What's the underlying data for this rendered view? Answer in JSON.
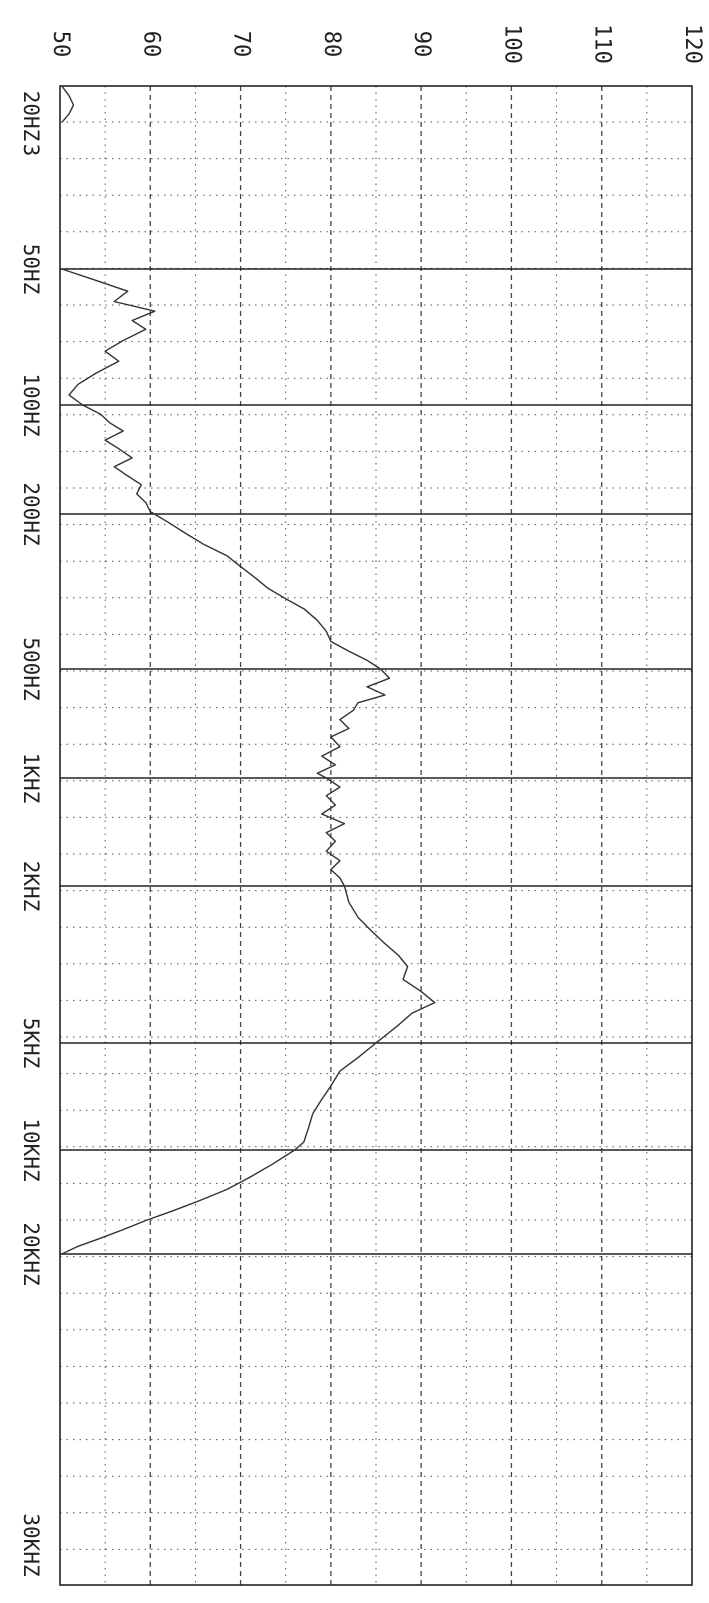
{
  "chart_data": {
    "type": "line",
    "title": "",
    "xlabel": "",
    "ylabel": "",
    "y_scale": "linear",
    "ylim": [
      50,
      120
    ],
    "y_ticks": [
      "50",
      "60",
      "70",
      "80",
      "90",
      "100",
      "110",
      "120"
    ],
    "x_scale": "log",
    "x_ticks": [
      "20HZ",
      "3",
      "50HZ",
      "100HZ",
      "200HZ",
      "500HZ",
      "1KHZ",
      "2KHZ",
      "5KHZ",
      "10KHZ",
      "20KHZ",
      "30KHZ"
    ],
    "grid": true,
    "orientation": "rotated (frequency axis vertical, level axis horizontal)",
    "series": [
      {
        "color": "#333333",
        "points": [
          {
            "x": 20,
            "y": 50.2
          },
          {
            "x": 21,
            "y": 51.0
          },
          {
            "x": 22,
            "y": 51.5
          },
          {
            "x": 23,
            "y": 51.0
          },
          {
            "x": 24,
            "y": 50.2
          },
          {
            "x": 50,
            "y": 50.2
          },
          {
            "x": 53,
            "y": 54.0
          },
          {
            "x": 56,
            "y": 57.5
          },
          {
            "x": 59,
            "y": 56.0
          },
          {
            "x": 62,
            "y": 60.5
          },
          {
            "x": 65,
            "y": 58.0
          },
          {
            "x": 68,
            "y": 59.5
          },
          {
            "x": 72,
            "y": 57.0
          },
          {
            "x": 76,
            "y": 55.0
          },
          {
            "x": 80,
            "y": 56.5
          },
          {
            "x": 85,
            "y": 54.0
          },
          {
            "x": 90,
            "y": 52.0
          },
          {
            "x": 95,
            "y": 51.0
          },
          {
            "x": 100,
            "y": 52.5
          },
          {
            "x": 106,
            "y": 54.5
          },
          {
            "x": 112,
            "y": 55.5
          },
          {
            "x": 118,
            "y": 57.0
          },
          {
            "x": 125,
            "y": 55.0
          },
          {
            "x": 132,
            "y": 56.5
          },
          {
            "x": 140,
            "y": 58.0
          },
          {
            "x": 148,
            "y": 56.0
          },
          {
            "x": 157,
            "y": 57.5
          },
          {
            "x": 166,
            "y": 59.0
          },
          {
            "x": 176,
            "y": 58.5
          },
          {
            "x": 186,
            "y": 59.5
          },
          {
            "x": 197,
            "y": 60.0
          },
          {
            "x": 210,
            "y": 62.0
          },
          {
            "x": 225,
            "y": 64.0
          },
          {
            "x": 240,
            "y": 66.0
          },
          {
            "x": 256,
            "y": 68.5
          },
          {
            "x": 273,
            "y": 70.0
          },
          {
            "x": 290,
            "y": 71.5
          },
          {
            "x": 310,
            "y": 73.0
          },
          {
            "x": 330,
            "y": 75.0
          },
          {
            "x": 350,
            "y": 77.0
          },
          {
            "x": 375,
            "y": 78.5
          },
          {
            "x": 400,
            "y": 79.5
          },
          {
            "x": 425,
            "y": 80.0
          },
          {
            "x": 450,
            "y": 82.0
          },
          {
            "x": 475,
            "y": 84.0
          },
          {
            "x": 500,
            "y": 85.5
          },
          {
            "x": 530,
            "y": 86.5
          },
          {
            "x": 560,
            "y": 84.0
          },
          {
            "x": 590,
            "y": 86.0
          },
          {
            "x": 620,
            "y": 83.0
          },
          {
            "x": 650,
            "y": 82.5
          },
          {
            "x": 690,
            "y": 81.0
          },
          {
            "x": 730,
            "y": 82.0
          },
          {
            "x": 770,
            "y": 80.0
          },
          {
            "x": 820,
            "y": 81.0
          },
          {
            "x": 870,
            "y": 79.0
          },
          {
            "x": 920,
            "y": 80.5
          },
          {
            "x": 970,
            "y": 78.5
          },
          {
            "x": 1000,
            "y": 79.5
          },
          {
            "x": 1060,
            "y": 81.0
          },
          {
            "x": 1120,
            "y": 79.5
          },
          {
            "x": 1190,
            "y": 80.5
          },
          {
            "x": 1260,
            "y": 79.0
          },
          {
            "x": 1340,
            "y": 81.5
          },
          {
            "x": 1420,
            "y": 79.5
          },
          {
            "x": 1500,
            "y": 80.5
          },
          {
            "x": 1600,
            "y": 79.5
          },
          {
            "x": 1700,
            "y": 81.0
          },
          {
            "x": 1800,
            "y": 80.0
          },
          {
            "x": 1900,
            "y": 81.0
          },
          {
            "x": 2000,
            "y": 81.5
          },
          {
            "x": 2200,
            "y": 82.0
          },
          {
            "x": 2400,
            "y": 83.0
          },
          {
            "x": 2600,
            "y": 84.5
          },
          {
            "x": 2800,
            "y": 86.0
          },
          {
            "x": 3000,
            "y": 87.5
          },
          {
            "x": 3200,
            "y": 88.5
          },
          {
            "x": 3450,
            "y": 88.0
          },
          {
            "x": 3700,
            "y": 90.0
          },
          {
            "x": 3950,
            "y": 91.5
          },
          {
            "x": 4200,
            "y": 89.0
          },
          {
            "x": 4500,
            "y": 87.5
          },
          {
            "x": 5000,
            "y": 85.0
          },
          {
            "x": 5500,
            "y": 83.0
          },
          {
            "x": 6000,
            "y": 81.0
          },
          {
            "x": 6600,
            "y": 80.0
          },
          {
            "x": 7200,
            "y": 79.0
          },
          {
            "x": 7900,
            "y": 78.0
          },
          {
            "x": 8700,
            "y": 77.5
          },
          {
            "x": 9500,
            "y": 77.0
          },
          {
            "x": 10000,
            "y": 76.0
          },
          {
            "x": 11000,
            "y": 73.5
          },
          {
            "x": 12000,
            "y": 71.0
          },
          {
            "x": 13000,
            "y": 68.5
          },
          {
            "x": 14000,
            "y": 65.5
          },
          {
            "x": 15000,
            "y": 62.5
          },
          {
            "x": 16000,
            "y": 59.5
          },
          {
            "x": 17000,
            "y": 57.0
          },
          {
            "x": 18000,
            "y": 54.5
          },
          {
            "x": 19000,
            "y": 52.0
          },
          {
            "x": 20000,
            "y": 50.2
          }
        ]
      }
    ]
  }
}
